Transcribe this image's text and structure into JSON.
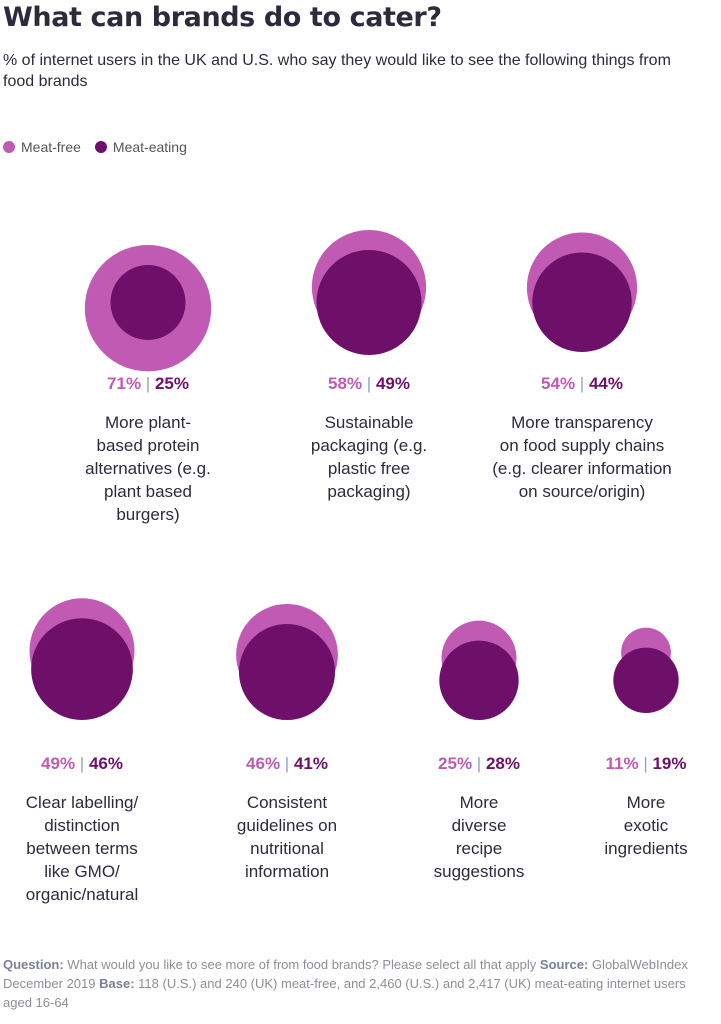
{
  "title": "What can brands do to cater?",
  "subtitle": "% of internet users in the UK and U.S. who say they would like to see the following things from food brands",
  "colors": {
    "meat_free": "#c05ab3",
    "meat_eating": "#6e0f6a",
    "separator": "#9aa0bd",
    "label": "#2b2b3d"
  },
  "chart_data": {
    "type": "bubble-pair",
    "unit": "%",
    "legend": [
      "Meat-free",
      "Meat-eating"
    ],
    "series": [
      {
        "name": "Meat-free",
        "values": [
          71,
          58,
          54,
          49,
          46,
          25,
          11
        ]
      },
      {
        "name": "Meat-eating",
        "values": [
          25,
          49,
          44,
          46,
          41,
          28,
          19
        ]
      }
    ],
    "categories": [
      "More plant-based protein alternatives (e.g. plant based burgers)",
      "Sustainable packaging (e.g. plastic free packaging)",
      "More transparency on food supply chains (e.g. clearer information on source/origin)",
      "Clear labelling/ distinction between terms like GMO/ organic/natural",
      "Consistent guidelines on nutritional information",
      "More diverse recipe suggestions",
      "More exotic ingredients"
    ],
    "category_lines": [
      [
        "More plant-",
        "based protein",
        "alternatives (e.g.",
        "plant based",
        "burgers)"
      ],
      [
        "Sustainable",
        "packaging (e.g.",
        "plastic free",
        "packaging)"
      ],
      [
        "More transparency",
        "on food supply chains",
        "(e.g. clearer information",
        "on source/origin)"
      ],
      [
        "Clear labelling/",
        "distinction",
        "between terms",
        "like GMO/",
        "organic/natural"
      ],
      [
        "Consistent",
        "guidelines on",
        "nutritional",
        "information"
      ],
      [
        "More",
        "diverse",
        "recipe",
        "suggestions"
      ],
      [
        "More",
        "exotic",
        "ingredients"
      ]
    ],
    "value_labels": [
      [
        "71%",
        "25%"
      ],
      [
        "58%",
        "49%"
      ],
      [
        "54%",
        "44%"
      ],
      [
        "49%",
        "46%"
      ],
      [
        "46%",
        "41%"
      ],
      [
        "25%",
        "28%"
      ],
      [
        "11%",
        "19%"
      ]
    ]
  },
  "footer": {
    "question_label": "Question:",
    "question_text": "What would you like to see more of from food brands? Please select all that apply",
    "source_label": "Source:",
    "source_text": "GlobalWebIndex December 2019",
    "base_label": "Base:",
    "base_text": "118 (U.S.) and 240 (UK) meat-free, and 2,460 (U.S.) and 2,417 (UK) meat-eating internet users aged 16-64"
  }
}
